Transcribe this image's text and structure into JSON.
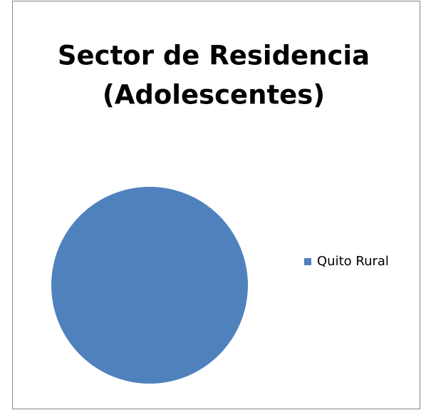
{
  "chart_data": {
    "type": "pie",
    "title": [
      "Sector de Residencia",
      "(Adolescentes)"
    ],
    "categories": [
      "Quito Rural"
    ],
    "values": [
      100
    ],
    "colors": [
      "#4f81bd"
    ],
    "legend": "right"
  }
}
